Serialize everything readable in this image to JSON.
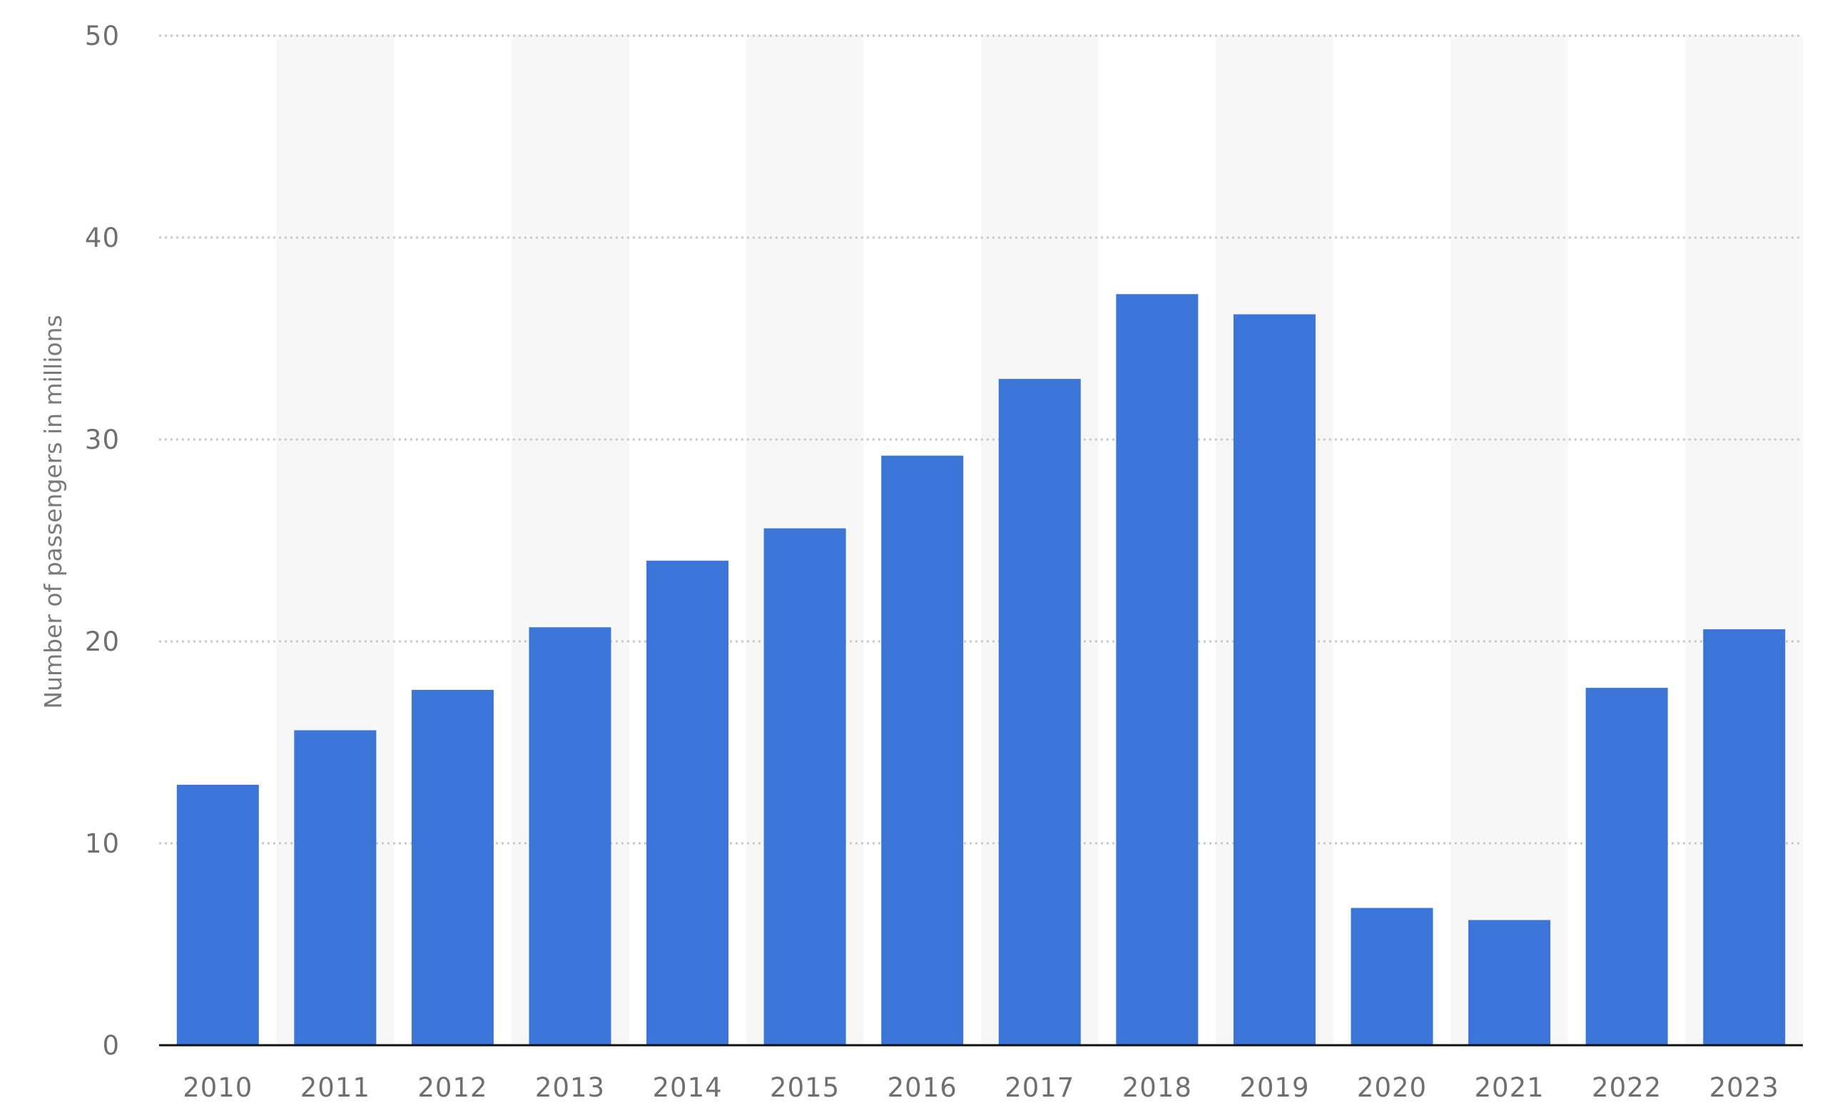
{
  "chart_data": {
    "type": "bar",
    "title": "",
    "xlabel": "",
    "ylabel": "Number of passengers in millions",
    "categories": [
      "2010",
      "2011",
      "2012",
      "2013",
      "2014",
      "2015",
      "2016",
      "2017",
      "2018",
      "2019",
      "2020",
      "2021",
      "2022",
      "2023"
    ],
    "series": [
      {
        "values": [
          12.9,
          15.6,
          17.6,
          20.7,
          24.0,
          25.6,
          29.2,
          33.0,
          37.2,
          36.2,
          6.8,
          6.2,
          17.7,
          20.6
        ]
      }
    ],
    "ylim": [
      0,
      50
    ],
    "yticks": [
      "0",
      "10",
      "20",
      "30",
      "40",
      "50"
    ],
    "grid": true,
    "alternating_bands": true,
    "legend": "none",
    "colors": {
      "bar": "#3c75d8",
      "band": "#f7f7f7",
      "grid": "#c8c8c8",
      "baseline": "#111111",
      "tick_text": "#6f6f6f"
    }
  }
}
